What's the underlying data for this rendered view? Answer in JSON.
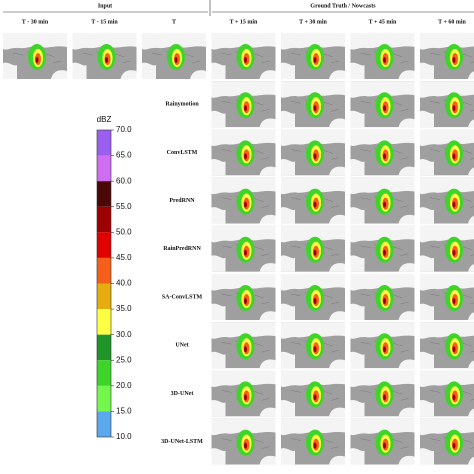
{
  "header": {
    "input": "Input",
    "ground_truth": "Ground Truth / Nowcasts"
  },
  "columns": [
    "T - 30 min",
    "T - 15 min",
    "T",
    "T + 15 min",
    "T + 30 min",
    "T + 45 min",
    "T + 60 min"
  ],
  "models": [
    "Rainymotion",
    "ConvLSTM",
    "PredRNN",
    "RainPredRNN",
    "SA-ConvLSTM",
    "UNet",
    "3D-UNet",
    "3D-UNet-LSTM"
  ],
  "colorbar": {
    "label": "dBZ",
    "ticks": [
      {
        "value": 70,
        "label": "70.0"
      },
      {
        "value": 65,
        "label": "65.0"
      },
      {
        "value": 60,
        "label": "60.0"
      },
      {
        "value": 55,
        "label": "55.0"
      },
      {
        "value": 50,
        "label": "50.0"
      },
      {
        "value": 45,
        "label": "45.0"
      },
      {
        "value": 40,
        "label": "40.0"
      },
      {
        "value": 35,
        "label": "35.0"
      },
      {
        "value": 30,
        "label": "30.0"
      },
      {
        "value": 25,
        "label": "25.0"
      },
      {
        "value": 20,
        "label": "20.0"
      },
      {
        "value": 15,
        "label": "15.0"
      },
      {
        "value": 10,
        "label": "10.0"
      }
    ],
    "colors": [
      "#9b5ff0",
      "#cf6ef0",
      "#4a0808",
      "#9c0000",
      "#e00000",
      "#f4601a",
      "#e6ad10",
      "#ffff44",
      "#20952a",
      "#3fd42a",
      "#74f64c",
      "#5aa9ec"
    ]
  }
}
